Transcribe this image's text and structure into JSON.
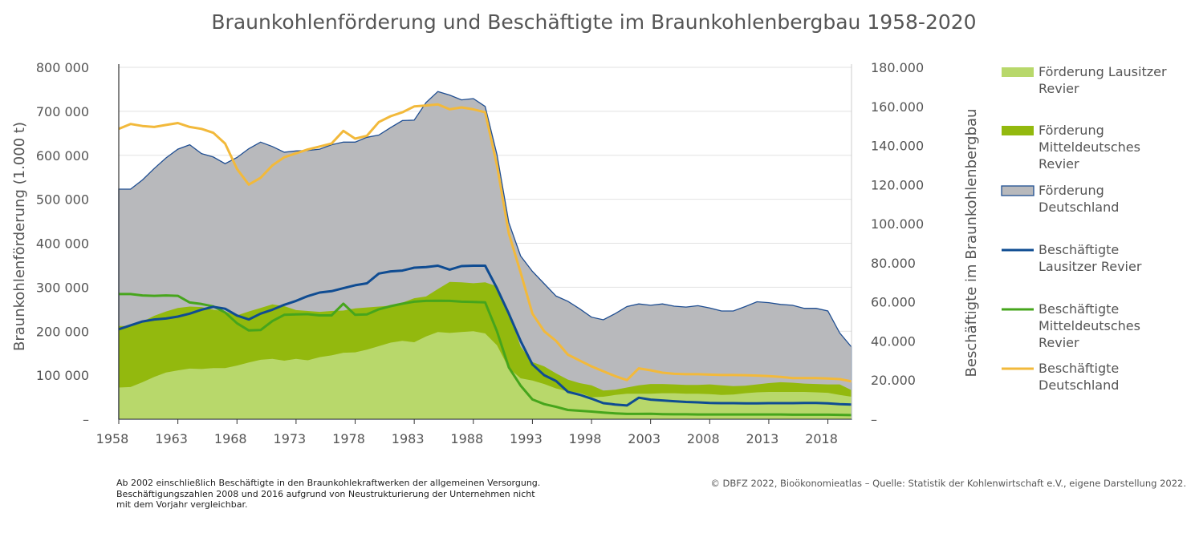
{
  "chart_data": {
    "type": "area",
    "title": "Braunkohlenförderung und Beschäftigte im Braunkohlenbergbau 1958-2020",
    "ylabel_left": "Braunkohlenförderung (1.000 t)",
    "ylabel_right": "Beschäftigte im Braunkohlenbergbau",
    "xlim": [
      1958,
      2020
    ],
    "ylim_left": [
      0,
      800000
    ],
    "ylim_right": [
      0,
      180000
    ],
    "grid": true,
    "legend_position": "right",
    "x_ticks": [
      "1958",
      "1963",
      "1968",
      "1973",
      "1978",
      "1983",
      "1988",
      "1993",
      "1998",
      "2003",
      "2008",
      "2013",
      "2018"
    ],
    "y_left_ticks": [
      "–",
      "100 000",
      "200 000",
      "300 000",
      "400 000",
      "500 000",
      "600 000",
      "700 000",
      "800 000"
    ],
    "y_right_ticks": [
      "–",
      "20.000",
      "40.000",
      "60.000",
      "80.000",
      "100.000",
      "120.000",
      "140.000",
      "160.000",
      "180.000"
    ],
    "x": [
      1958,
      1959,
      1960,
      1961,
      1962,
      1963,
      1964,
      1965,
      1966,
      1967,
      1968,
      1969,
      1970,
      1971,
      1972,
      1973,
      1974,
      1975,
      1976,
      1977,
      1978,
      1979,
      1980,
      1981,
      1982,
      1983,
      1984,
      1985,
      1986,
      1987,
      1988,
      1989,
      1990,
      1991,
      1992,
      1993,
      1994,
      1995,
      1996,
      1997,
      1998,
      1999,
      2000,
      2001,
      2002,
      2003,
      2004,
      2005,
      2006,
      2007,
      2008,
      2009,
      2010,
      2011,
      2012,
      2013,
      2014,
      2015,
      2016,
      2017,
      2018,
      2019,
      2020
    ],
    "series": [
      {
        "name": "Förderung Lausitzer Revier",
        "axis": "left",
        "kind": "area",
        "color": "#b8d86b",
        "values": [
          72000,
          73000,
          84000,
          96000,
          106000,
          111000,
          115000,
          114000,
          116000,
          116000,
          122000,
          129000,
          135000,
          137000,
          133000,
          137000,
          134000,
          141000,
          145000,
          151000,
          152000,
          158000,
          166000,
          174000,
          178000,
          175000,
          188000,
          198000,
          196000,
          198000,
          200000,
          195000,
          168000,
          116000,
          93000,
          88000,
          80000,
          70000,
          63000,
          60000,
          50000,
          51000,
          55000,
          58000,
          58000,
          58000,
          59000,
          59000,
          58000,
          58000,
          57000,
          55000,
          56000,
          59000,
          61000,
          62000,
          62000,
          62000,
          62000,
          61000,
          60000,
          55000,
          51000
        ]
      },
      {
        "name": "Förderung Mitteldeutsches Revier",
        "axis": "left",
        "kind": "area",
        "color": "#93b90e",
        "values": [
          212000,
          212000,
          222000,
          235000,
          245000,
          253000,
          256000,
          255000,
          249000,
          245000,
          236000,
          245000,
          253000,
          261000,
          257000,
          248000,
          246000,
          244000,
          246000,
          247000,
          252000,
          254000,
          256000,
          258000,
          265000,
          275000,
          279000,
          296000,
          312000,
          311000,
          309000,
          311000,
          302000,
          245000,
          165000,
          130000,
          120000,
          104000,
          90000,
          82000,
          77000,
          65000,
          67000,
          72000,
          77000,
          80000,
          80000,
          79000,
          78000,
          78000,
          79000,
          77000,
          75000,
          76000,
          79000,
          82000,
          84000,
          83000,
          81000,
          80000,
          79000,
          79000,
          66000
        ]
      },
      {
        "name": "Förderung Deutschland",
        "axis": "left",
        "kind": "area",
        "color": "#b8b9bc",
        "stroke": "#1f4e92",
        "values": [
          523000,
          523000,
          544000,
          570000,
          594000,
          614000,
          624000,
          604000,
          596000,
          581000,
          595000,
          615000,
          630000,
          620000,
          607000,
          610000,
          611000,
          614000,
          624000,
          630000,
          630000,
          641000,
          646000,
          663000,
          679000,
          680000,
          720000,
          745000,
          737000,
          726000,
          729000,
          711000,
          602000,
          447000,
          371000,
          336000,
          308000,
          280000,
          268000,
          251000,
          232000,
          226000,
          240000,
          256000,
          262000,
          259000,
          262000,
          257000,
          255000,
          258000,
          253000,
          246000,
          246000,
          256000,
          267000,
          265000,
          261000,
          259000,
          252000,
          252000,
          246000,
          196000,
          164000
        ]
      },
      {
        "name": "Beschäftigte Lausitzer Revier",
        "axis": "right",
        "kind": "line",
        "color": "#0f4c92",
        "values": [
          46000,
          48000,
          50000,
          51000,
          51500,
          52500,
          54000,
          56000,
          57500,
          56500,
          53000,
          51000,
          54000,
          56000,
          58500,
          60500,
          63000,
          64800,
          65500,
          67000,
          68500,
          69500,
          74500,
          75600,
          76000,
          77500,
          77800,
          78500,
          76500,
          78300,
          78500,
          78500,
          67000,
          54000,
          40000,
          28000,
          22500,
          19500,
          14000,
          12500,
          10500,
          8200,
          7500,
          7000,
          11000,
          10000,
          9600,
          9200,
          8800,
          8600,
          8300,
          8200,
          8200,
          8100,
          8100,
          8200,
          8200,
          8200,
          8300,
          8300,
          8100,
          7700,
          7500
        ]
      },
      {
        "name": "Beschäftigte Mitteldeutsches Revier",
        "axis": "right",
        "kind": "line",
        "color": "#46a51c",
        "values": [
          64000,
          64000,
          63300,
          63100,
          63300,
          63100,
          59700,
          58900,
          57700,
          54600,
          49100,
          45400,
          45600,
          50200,
          53400,
          53600,
          53700,
          53100,
          53100,
          59100,
          53400,
          53600,
          56200,
          57800,
          59100,
          60100,
          60500,
          60600,
          60500,
          60100,
          60000,
          59800,
          45000,
          26500,
          17200,
          10100,
          7700,
          6300,
          4700,
          4300,
          3900,
          3400,
          3000,
          2700,
          2700,
          2800,
          2600,
          2500,
          2500,
          2400,
          2400,
          2400,
          2400,
          2400,
          2400,
          2400,
          2400,
          2300,
          2300,
          2300,
          2300,
          2200,
          2100
        ]
      },
      {
        "name": "Beschäftigte Deutschland",
        "axis": "right",
        "kind": "line",
        "color": "#f2b93b",
        "values": [
          148500,
          151000,
          150000,
          149500,
          150500,
          151500,
          149500,
          148500,
          146500,
          141000,
          128000,
          120000,
          123500,
          129800,
          134000,
          136000,
          138000,
          139500,
          141000,
          147500,
          143500,
          145000,
          152000,
          155000,
          157000,
          160000,
          160500,
          161000,
          158500,
          159500,
          158500,
          157000,
          130000,
          95000,
          75000,
          54000,
          45000,
          40000,
          33000,
          30000,
          27000,
          24500,
          22000,
          20000,
          26000,
          25000,
          23800,
          23200,
          23000,
          23000,
          22800,
          22600,
          22600,
          22500,
          22300,
          22000,
          21600,
          21000,
          21000,
          21000,
          20800,
          20500,
          19300
        ]
      }
    ]
  },
  "footnote_lines": [
    "Ab 2002 einschließlich Beschäftigte in den Braunkohlekraftwerken der allgemeinen Versorgung.",
    "Beschäftigungszahlen 2008 und 2016 aufgrund von Neustrukturierung der Unternehmen nicht",
    "mit dem Vorjahr vergleichbar."
  ],
  "credit": "© DBFZ 2022, Bioökonomieatlas – Quelle: Statistik der Kohlenwirtschaft e.V., eigene Darstellung 2022.",
  "legend": [
    {
      "lines": [
        "Förderung Lausitzer",
        "Revier"
      ],
      "kind": "area",
      "color": "#b8d86b"
    },
    {
      "lines": [
        "Förderung",
        "Mitteldeutsches",
        "Revier"
      ],
      "kind": "area",
      "color": "#93b90e"
    },
    {
      "lines": [
        "Förderung",
        "Deutschland"
      ],
      "kind": "area",
      "color": "#b8b9bc",
      "stroke": "#1f4e92"
    },
    {
      "lines": [
        "Beschäftigte",
        "Lausitzer Revier"
      ],
      "kind": "line",
      "color": "#0f4c92"
    },
    {
      "lines": [
        "Beschäftigte",
        "Mitteldeutsches",
        "Revier"
      ],
      "kind": "line",
      "color": "#46a51c"
    },
    {
      "lines": [
        "Beschäftigte",
        "Deutschland"
      ],
      "kind": "line",
      "color": "#f2b93b"
    }
  ]
}
